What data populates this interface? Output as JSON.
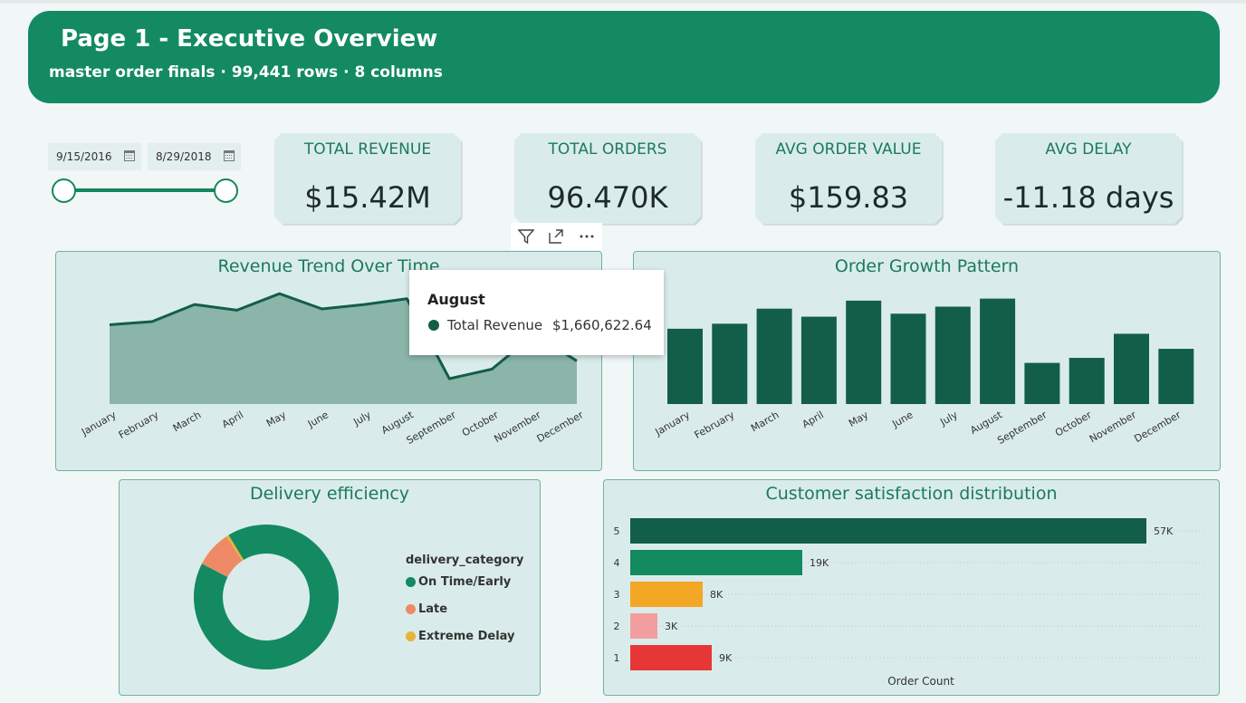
{
  "header": {
    "title": "Page 1 - Executive Overview",
    "subtitle": "master order finals · 99,441 rows · 8 columns"
  },
  "date_filter": {
    "start": "9/15/2016",
    "end": "8/29/2018"
  },
  "kpis": [
    {
      "label": "TOTAL REVENUE",
      "value": "$15.42M"
    },
    {
      "label": "TOTAL ORDERS",
      "value": "96.470K"
    },
    {
      "label": "AVG ORDER VALUE",
      "value": "$159.83"
    },
    {
      "label": "AVG DELAY",
      "value": "-11.18 days"
    }
  ],
  "toolbar": {
    "filter_icon": "filter-icon",
    "focus_icon": "focus-mode-icon",
    "more_icon": "more-options-icon"
  },
  "tooltip": {
    "title": "August",
    "series": "Total Revenue",
    "value": "$1,660,622.64"
  },
  "colors": {
    "brand": "#138a62",
    "dark_green": "#135e49",
    "area_fill": "#8ab5a8",
    "late": "#ee8a65",
    "extreme": "#e8b339",
    "rating_4": "#148a61",
    "rating_3": "#f4a724",
    "rating_2": "#f29e9e",
    "rating_1": "#e63736"
  },
  "chart_data": [
    {
      "type": "area",
      "title": "Revenue Trend Over Time",
      "categories": [
        "January",
        "February",
        "March",
        "April",
        "May",
        "June",
        "July",
        "August",
        "September",
        "October",
        "November",
        "December"
      ],
      "series": [
        {
          "name": "Total Revenue",
          "values": [
            1250000,
            1300000,
            1570000,
            1480000,
            1740000,
            1500000,
            1570000,
            1660622.64,
            400000,
            550000,
            1100000,
            680000
          ]
        }
      ],
      "ylim": [
        0,
        2000000
      ],
      "grid": false
    },
    {
      "type": "bar",
      "title": "Order Growth Pattern",
      "categories": [
        "January",
        "February",
        "March",
        "April",
        "May",
        "June",
        "July",
        "August",
        "September",
        "October",
        "November",
        "December"
      ],
      "values": [
        7500,
        8000,
        9500,
        8700,
        10300,
        9000,
        9700,
        10500,
        4100,
        4600,
        7000,
        5500
      ],
      "ylim": [
        0,
        12000
      ],
      "grid": false
    },
    {
      "type": "pie",
      "title": "Delivery efficiency",
      "legend_title": "delivery_category",
      "legend_position": "right",
      "labels": [
        "On Time/Early",
        "Late",
        "Extreme Delay"
      ],
      "values": [
        91.3,
        8.1,
        0.6
      ]
    },
    {
      "type": "bar",
      "orientation": "horizontal",
      "title": "Customer satisfaction distribution",
      "xlabel": "Order Count",
      "categories": [
        "5",
        "4",
        "3",
        "2",
        "1"
      ],
      "values": [
        57000,
        19000,
        8000,
        3000,
        9000
      ],
      "data_labels": [
        "57K",
        "19K",
        "8K",
        "3K",
        "9K"
      ],
      "xlim": [
        0,
        60000
      ]
    }
  ]
}
